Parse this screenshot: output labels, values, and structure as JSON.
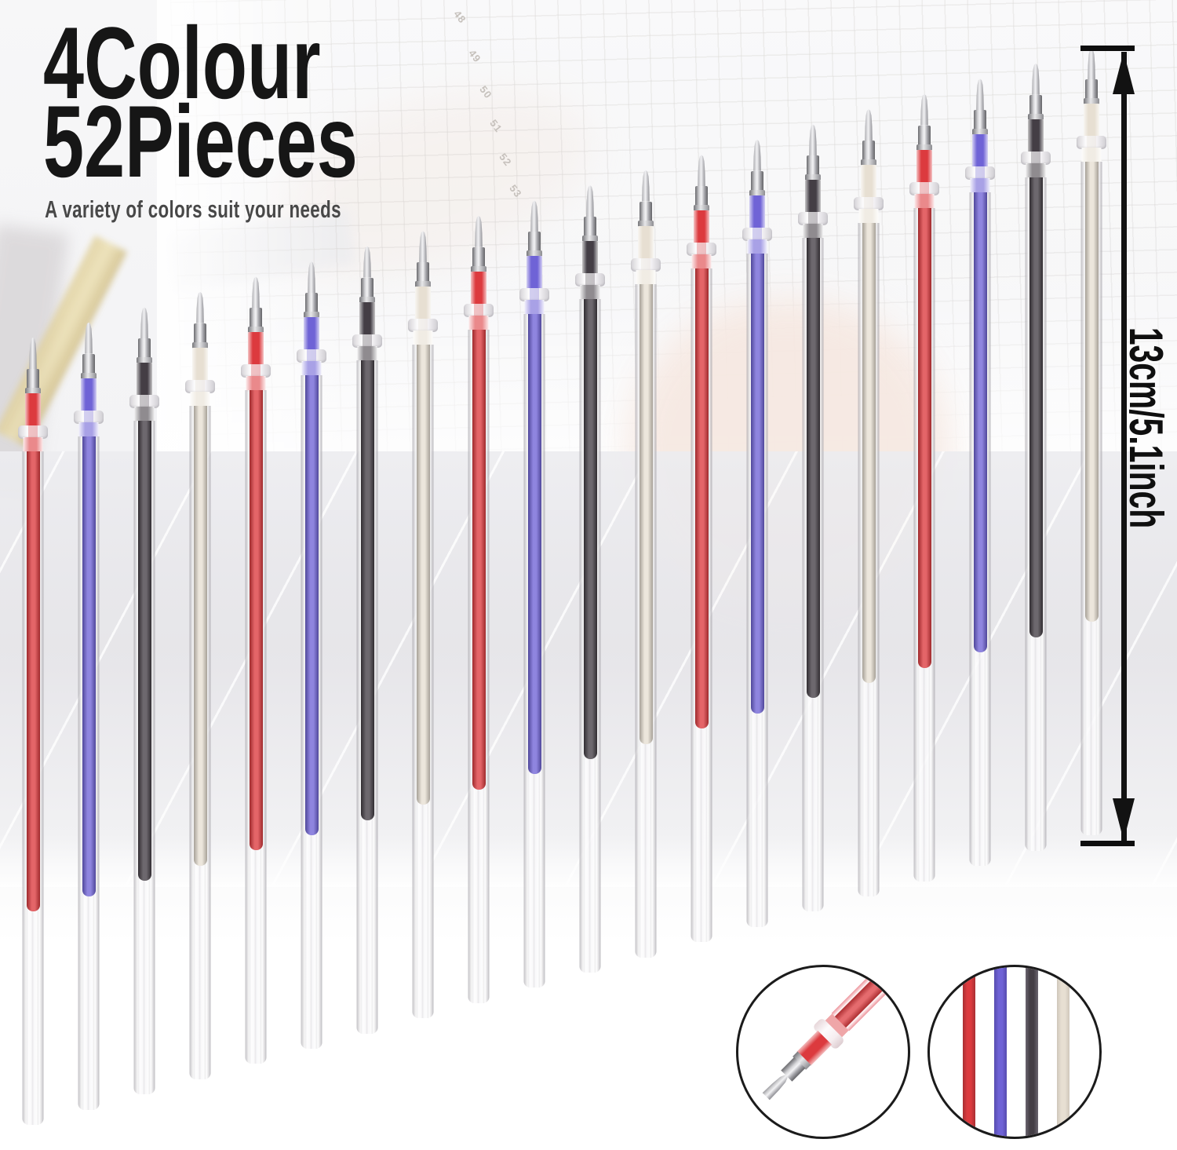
{
  "title": {
    "line1": "4Colour",
    "line2": "52Pieces",
    "subtitle": "A variety of colors suit your needs"
  },
  "measurement": {
    "label": "13cm/5.1inch"
  },
  "ruler_numbers": [
    "48",
    "49",
    "50",
    "51",
    "52",
    "53"
  ],
  "ink_colors": {
    "red": "#dc3a3e",
    "purple": "#6f63d6",
    "black": "#443e45",
    "white": "#e7dfd2"
  },
  "pens": [
    "red",
    "purple",
    "black",
    "white",
    "red",
    "purple",
    "black",
    "white",
    "red",
    "purple",
    "black",
    "white",
    "red",
    "purple",
    "black",
    "white",
    "red",
    "purple",
    "black",
    "white"
  ],
  "insets": {
    "tip_detail": {
      "color": "red"
    },
    "stripe_detail": {
      "stripes": [
        "red",
        "purple",
        "black",
        "white"
      ]
    }
  }
}
